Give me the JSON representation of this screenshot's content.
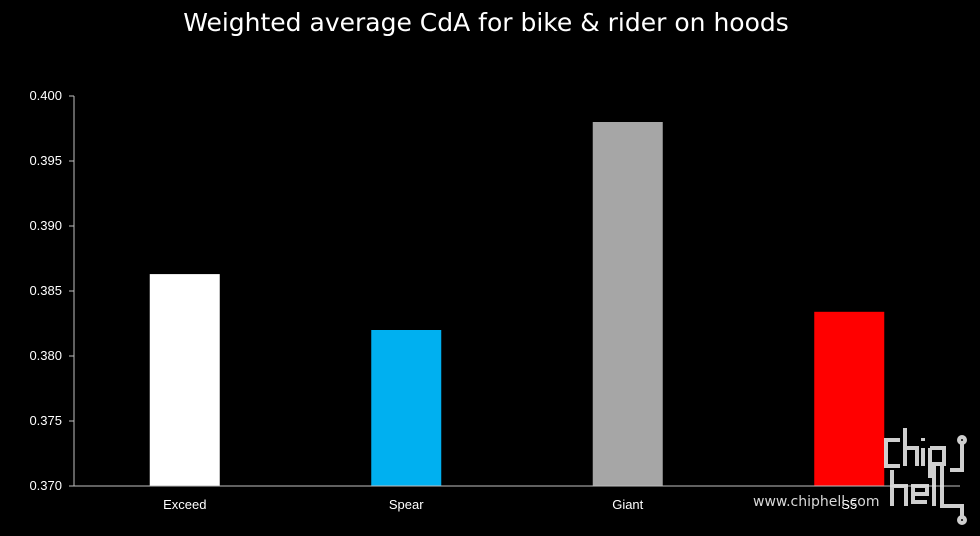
{
  "colors": {
    "background": "#000000",
    "text": "#ffffff",
    "axis": "#bfbfbf"
  },
  "chart_data": {
    "type": "bar",
    "title": "Weighted average CdA for bike & rider on hoods",
    "xlabel": "",
    "ylabel": "",
    "categories": [
      "Exceed",
      "Spear",
      "Giant",
      "S5"
    ],
    "values": [
      0.3863,
      0.382,
      0.398,
      0.3834
    ],
    "bar_colors": [
      "#ffffff",
      "#00b0f0",
      "#a6a6a6",
      "#ff0000"
    ],
    "ylim": [
      0.37,
      0.4
    ],
    "yticks": [
      "0.370",
      "0.375",
      "0.380",
      "0.385",
      "0.390",
      "0.395",
      "0.400"
    ],
    "grid": false,
    "legend": "none"
  },
  "watermark": {
    "site": "www.chiphell.com",
    "logo_text": "chip hell"
  }
}
